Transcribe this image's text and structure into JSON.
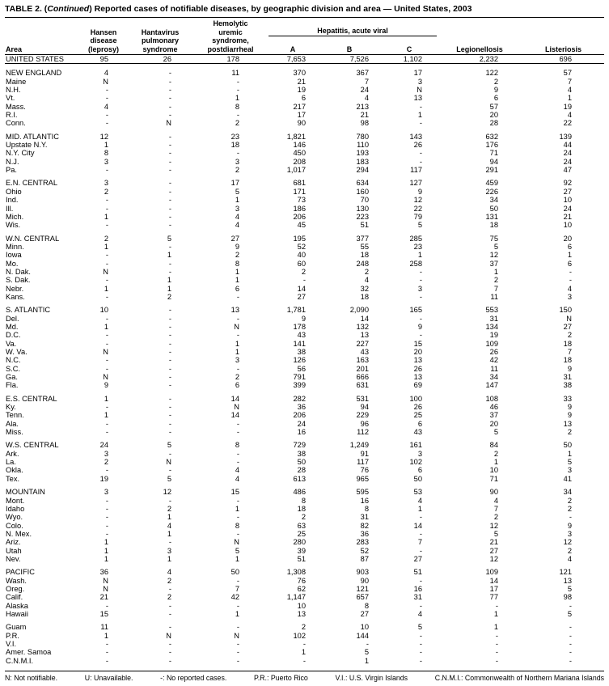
{
  "title": {
    "prefix": "TABLE 2. (",
    "italic": "Continued",
    "suffix": ") Reported cases of notifiable diseases, by geographic division and area — United States, 2003"
  },
  "header": {
    "area": "Area",
    "hansen": "Hansen\ndisease\n(leprosy)",
    "hantavirus": "Hantavirus\npulmonary\nsyndrome",
    "hus": "Hemolytic\nuremic\nsyndrome,\npostdiarrheal",
    "hepatitis_group": "Hepatitis, acute viral",
    "hep_a": "A",
    "hep_b": "B",
    "hep_c": "C",
    "legionellosis": "Legionellosis",
    "listeriosis": "Listeriosis"
  },
  "table": {
    "groups": [
      {
        "rule_after": true,
        "rows": [
          [
            "UNITED STATES",
            "95",
            "26",
            "178",
            "7,653",
            "7,526",
            "1,102",
            "2,232",
            "696"
          ]
        ]
      },
      {
        "rows": [
          [
            "NEW ENGLAND",
            "4",
            "-",
            "11",
            "370",
            "367",
            "17",
            "122",
            "57"
          ],
          [
            "Maine",
            "N",
            "-",
            "-",
            "21",
            "7",
            "3",
            "2",
            "7"
          ],
          [
            "N.H.",
            "-",
            "-",
            "-",
            "19",
            "24",
            "N",
            "9",
            "4"
          ],
          [
            "Vt.",
            "-",
            "-",
            "1",
            "6",
            "4",
            "13",
            "6",
            "1"
          ],
          [
            "Mass.",
            "4",
            "-",
            "8",
            "217",
            "213",
            "-",
            "57",
            "19"
          ],
          [
            "R.I.",
            "-",
            "-",
            "-",
            "17",
            "21",
            "1",
            "20",
            "4"
          ],
          [
            "Conn.",
            "-",
            "N",
            "2",
            "90",
            "98",
            "-",
            "28",
            "22"
          ]
        ]
      },
      {
        "rows": [
          [
            "MID. ATLANTIC",
            "12",
            "-",
            "23",
            "1,821",
            "780",
            "143",
            "632",
            "139"
          ],
          [
            "Upstate N.Y.",
            "1",
            "-",
            "18",
            "146",
            "110",
            "26",
            "176",
            "44"
          ],
          [
            "N.Y. City",
            "8",
            "-",
            "-",
            "450",
            "193",
            "-",
            "71",
            "24"
          ],
          [
            "N.J.",
            "3",
            "-",
            "3",
            "208",
            "183",
            "-",
            "94",
            "24"
          ],
          [
            "Pa.",
            "-",
            "-",
            "2",
            "1,017",
            "294",
            "117",
            "291",
            "47"
          ]
        ]
      },
      {
        "rows": [
          [
            "E.N. CENTRAL",
            "3",
            "-",
            "17",
            "681",
            "634",
            "127",
            "459",
            "92"
          ],
          [
            "Ohio",
            "2",
            "-",
            "5",
            "171",
            "160",
            "9",
            "226",
            "27"
          ],
          [
            "Ind.",
            "-",
            "-",
            "1",
            "73",
            "70",
            "12",
            "34",
            "10"
          ],
          [
            "Ill.",
            "-",
            "-",
            "3",
            "186",
            "130",
            "22",
            "50",
            "24"
          ],
          [
            "Mich.",
            "1",
            "-",
            "4",
            "206",
            "223",
            "79",
            "131",
            "21"
          ],
          [
            "Wis.",
            "-",
            "-",
            "4",
            "45",
            "51",
            "5",
            "18",
            "10"
          ]
        ]
      },
      {
        "rows": [
          [
            "W.N. CENTRAL",
            "2",
            "5",
            "27",
            "195",
            "377",
            "285",
            "75",
            "20"
          ],
          [
            "Minn.",
            "1",
            "-",
            "9",
            "52",
            "55",
            "23",
            "5",
            "6"
          ],
          [
            "Iowa",
            "-",
            "1",
            "2",
            "40",
            "18",
            "1",
            "12",
            "1"
          ],
          [
            "Mo.",
            "-",
            "-",
            "8",
            "60",
            "248",
            "258",
            "37",
            "6"
          ],
          [
            "N. Dak.",
            "N",
            "-",
            "1",
            "2",
            "2",
            "-",
            "1",
            "-"
          ],
          [
            "S. Dak.",
            "-",
            "1",
            "1",
            "-",
            "4",
            "-",
            "2",
            "-"
          ],
          [
            "Nebr.",
            "1",
            "1",
            "6",
            "14",
            "32",
            "3",
            "7",
            "4"
          ],
          [
            "Kans.",
            "-",
            "2",
            "-",
            "27",
            "18",
            "-",
            "11",
            "3"
          ]
        ]
      },
      {
        "rows": [
          [
            "S. ATLANTIC",
            "10",
            "-",
            "13",
            "1,781",
            "2,090",
            "165",
            "553",
            "150"
          ],
          [
            "Del.",
            "-",
            "-",
            "-",
            "9",
            "14",
            "-",
            "31",
            "N"
          ],
          [
            "Md.",
            "1",
            "-",
            "N",
            "178",
            "132",
            "9",
            "134",
            "27"
          ],
          [
            "D.C.",
            "-",
            "-",
            "-",
            "43",
            "13",
            "-",
            "19",
            "2"
          ],
          [
            "Va.",
            "-",
            "-",
            "1",
            "141",
            "227",
            "15",
            "109",
            "18"
          ],
          [
            "W. Va.",
            "N",
            "-",
            "1",
            "38",
            "43",
            "20",
            "26",
            "7"
          ],
          [
            "N.C.",
            "-",
            "-",
            "3",
            "126",
            "163",
            "13",
            "42",
            "18"
          ],
          [
            "S.C.",
            "-",
            "-",
            "-",
            "56",
            "201",
            "26",
            "11",
            "9"
          ],
          [
            "Ga.",
            "N",
            "-",
            "2",
            "791",
            "666",
            "13",
            "34",
            "31"
          ],
          [
            "Fla.",
            "9",
            "-",
            "6",
            "399",
            "631",
            "69",
            "147",
            "38"
          ]
        ]
      },
      {
        "rows": [
          [
            "E.S. CENTRAL",
            "1",
            "-",
            "14",
            "282",
            "531",
            "100",
            "108",
            "33"
          ],
          [
            "Ky.",
            "-",
            "-",
            "N",
            "36",
            "94",
            "26",
            "46",
            "9"
          ],
          [
            "Tenn.",
            "1",
            "-",
            "14",
            "206",
            "229",
            "25",
            "37",
            "9"
          ],
          [
            "Ala.",
            "-",
            "-",
            "-",
            "24",
            "96",
            "6",
            "20",
            "13"
          ],
          [
            "Miss.",
            "-",
            "-",
            "-",
            "16",
            "112",
            "43",
            "5",
            "2"
          ]
        ]
      },
      {
        "rows": [
          [
            "W.S. CENTRAL",
            "24",
            "5",
            "8",
            "729",
            "1,249",
            "161",
            "84",
            "50"
          ],
          [
            "Ark.",
            "3",
            "-",
            "-",
            "38",
            "91",
            "3",
            "2",
            "1"
          ],
          [
            "La.",
            "2",
            "N",
            "-",
            "50",
            "117",
            "102",
            "1",
            "5"
          ],
          [
            "Okla.",
            "-",
            "-",
            "4",
            "28",
            "76",
            "6",
            "10",
            "3"
          ],
          [
            "Tex.",
            "19",
            "5",
            "4",
            "613",
            "965",
            "50",
            "71",
            "41"
          ]
        ]
      },
      {
        "rows": [
          [
            "MOUNTAIN",
            "3",
            "12",
            "15",
            "486",
            "595",
            "53",
            "90",
            "34"
          ],
          [
            "Mont.",
            "-",
            "-",
            "-",
            "8",
            "16",
            "4",
            "4",
            "2"
          ],
          [
            "Idaho",
            "-",
            "2",
            "1",
            "18",
            "8",
            "1",
            "7",
            "2"
          ],
          [
            "Wyo.",
            "-",
            "1",
            "-",
            "2",
            "31",
            "-",
            "2",
            "-"
          ],
          [
            "Colo.",
            "-",
            "4",
            "8",
            "63",
            "82",
            "14",
            "12",
            "9"
          ],
          [
            "N. Mex.",
            "-",
            "1",
            "-",
            "25",
            "36",
            "-",
            "5",
            "3"
          ],
          [
            "Ariz.",
            "1",
            "-",
            "N",
            "280",
            "283",
            "7",
            "21",
            "12"
          ],
          [
            "Utah",
            "1",
            "3",
            "5",
            "39",
            "52",
            "-",
            "27",
            "2"
          ],
          [
            "Nev.",
            "1",
            "1",
            "1",
            "51",
            "87",
            "27",
            "12",
            "4"
          ]
        ]
      },
      {
        "rows": [
          [
            "PACIFIC",
            "36",
            "4",
            "50",
            "1,308",
            "903",
            "51",
            "109",
            "121"
          ],
          [
            "Wash.",
            "N",
            "2",
            "-",
            "76",
            "90",
            "-",
            "14",
            "13"
          ],
          [
            "Oreg.",
            "N",
            "-",
            "7",
            "62",
            "121",
            "16",
            "17",
            "5"
          ],
          [
            "Calif.",
            "21",
            "2",
            "42",
            "1,147",
            "657",
            "31",
            "77",
            "98"
          ],
          [
            "Alaska",
            "-",
            "-",
            "-",
            "10",
            "8",
            "-",
            "-",
            "-"
          ],
          [
            "Hawaii",
            "15",
            "-",
            "1",
            "13",
            "27",
            "4",
            "1",
            "5"
          ]
        ]
      },
      {
        "rows": [
          [
            "Guam",
            "11",
            "-",
            "-",
            "2",
            "10",
            "5",
            "1",
            "-"
          ],
          [
            "P.R.",
            "1",
            "N",
            "N",
            "102",
            "144",
            "-",
            "-",
            "-"
          ],
          [
            "V.I.",
            "-",
            "-",
            "-",
            "-",
            "-",
            "-",
            "-",
            "-"
          ],
          [
            "Amer. Samoa",
            "-",
            "-",
            "-",
            "1",
            "5",
            "-",
            "-",
            "-"
          ],
          [
            "C.N.M.I.",
            "-",
            "-",
            "-",
            "-",
            "1",
            "-",
            "-",
            "-"
          ]
        ]
      }
    ]
  },
  "footnotes": [
    "N: Not notifiable.",
    "U: Unavailable.",
    "-: No reported cases.",
    "P.R.: Puerto Rico",
    "V.I.: U.S. Virgin Islands",
    "C.N.M.I.: Commonwealth of Northern Mariana Islands"
  ]
}
